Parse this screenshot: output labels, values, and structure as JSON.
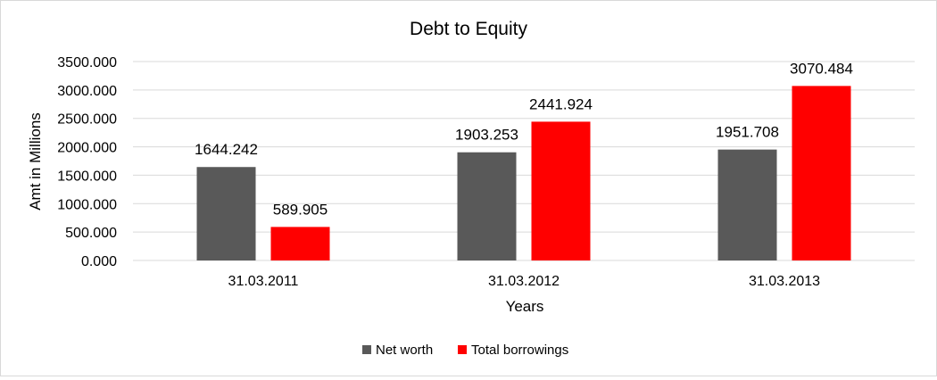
{
  "chart_data": {
    "type": "bar",
    "title": "Debt to Equity",
    "xlabel": "Years",
    "ylabel": "Amt in Millions",
    "categories": [
      "31.03.2011",
      "31.03.2012",
      "31.03.2013"
    ],
    "series": [
      {
        "name": "Net worth",
        "color": "#595959",
        "values": [
          1644.242,
          1903.253,
          1951.708
        ]
      },
      {
        "name": "Total borrowings",
        "color": "#ff0000",
        "values": [
          589.905,
          2441.924,
          3070.484
        ]
      }
    ],
    "data_labels": [
      [
        "1644.242",
        "1903.253",
        "1951.708"
      ],
      [
        "589.905",
        "2441.924",
        "3070.484"
      ]
    ],
    "ylim": [
      0,
      3500
    ],
    "yticks": [
      "0.000",
      "500.000",
      "1000.000",
      "1500.000",
      "2000.000",
      "2500.000",
      "3000.000",
      "3500.000"
    ],
    "grid": true,
    "legend_position": "bottom"
  }
}
